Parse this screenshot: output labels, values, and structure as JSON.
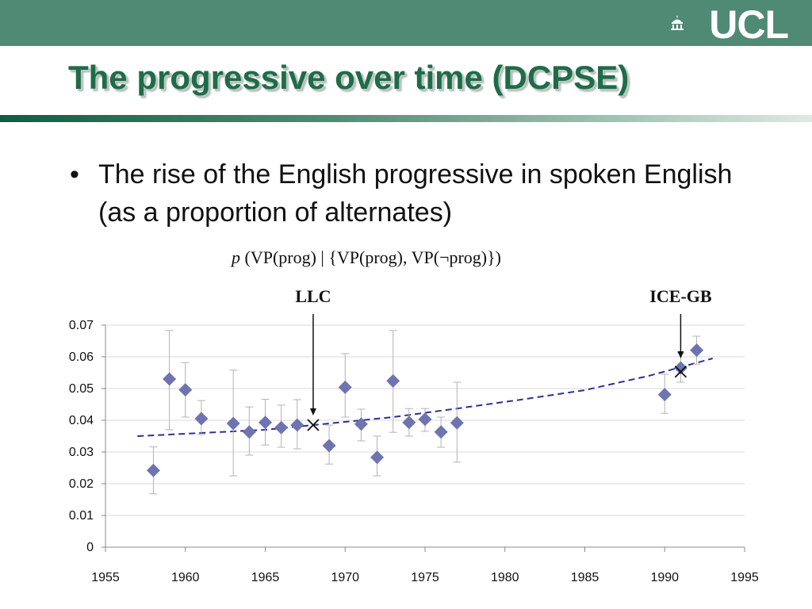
{
  "header": {
    "logo_text": "UCL"
  },
  "slide": {
    "title": "The progressive over time (DCPSE)",
    "bullet": "The rise of the English progressive in spoken English (as a proportion of alternates)",
    "formula_p": "p",
    "formula_rest": "(VP(prog) | {VP(prog), VP(¬prog)})"
  },
  "colors": {
    "header_bar": "#4f8a74",
    "title": "#1f6b4a",
    "marker": "#6f74b0",
    "trend": "#2e3192"
  },
  "chart_data": {
    "type": "scatter",
    "title": "",
    "xlabel": "",
    "ylabel": "",
    "xlim": [
      1955,
      1995
    ],
    "ylim": [
      0,
      0.07
    ],
    "x_ticks": [
      1955,
      1960,
      1965,
      1970,
      1975,
      1980,
      1985,
      1990,
      1995
    ],
    "y_ticks": [
      0,
      0.01,
      0.02,
      0.03,
      0.04,
      0.05,
      0.06,
      0.07
    ],
    "y_tick_labels": [
      "0",
      "0.01",
      "0.02",
      "0.03",
      "0.04",
      "0.05",
      "0.06",
      "0.07"
    ],
    "grid": "horizontal",
    "points": [
      {
        "x": 1958,
        "y": 0.0242,
        "lo": 0.0168,
        "hi": 0.0316
      },
      {
        "x": 1959,
        "y": 0.053,
        "lo": 0.037,
        "hi": 0.0683
      },
      {
        "x": 1960,
        "y": 0.0496,
        "lo": 0.041,
        "hi": 0.0582
      },
      {
        "x": 1961,
        "y": 0.0405,
        "lo": 0.0355,
        "hi": 0.0462
      },
      {
        "x": 1963,
        "y": 0.039,
        "lo": 0.0225,
        "hi": 0.0558
      },
      {
        "x": 1964,
        "y": 0.0363,
        "lo": 0.029,
        "hi": 0.0442
      },
      {
        "x": 1965,
        "y": 0.0393,
        "lo": 0.0322,
        "hi": 0.0466
      },
      {
        "x": 1966,
        "y": 0.0377,
        "lo": 0.0315,
        "hi": 0.0448
      },
      {
        "x": 1967,
        "y": 0.0385,
        "lo": 0.031,
        "hi": 0.0465
      },
      {
        "x": 1969,
        "y": 0.032,
        "lo": 0.0262,
        "hi": 0.0385
      },
      {
        "x": 1970,
        "y": 0.0504,
        "lo": 0.041,
        "hi": 0.061
      },
      {
        "x": 1971,
        "y": 0.0388,
        "lo": 0.0335,
        "hi": 0.0435
      },
      {
        "x": 1972,
        "y": 0.0283,
        "lo": 0.0225,
        "hi": 0.035
      },
      {
        "x": 1973,
        "y": 0.0524,
        "lo": 0.0362,
        "hi": 0.0683
      },
      {
        "x": 1974,
        "y": 0.0393,
        "lo": 0.035,
        "hi": 0.0437
      },
      {
        "x": 1975,
        "y": 0.0403,
        "lo": 0.0365,
        "hi": 0.0437
      },
      {
        "x": 1976,
        "y": 0.0363,
        "lo": 0.0315,
        "hi": 0.041
      },
      {
        "x": 1977,
        "y": 0.0392,
        "lo": 0.0268,
        "hi": 0.052
      },
      {
        "x": 1990,
        "y": 0.0481,
        "lo": 0.0422,
        "hi": 0.0545
      },
      {
        "x": 1991,
        "y": 0.0565,
        "lo": 0.052,
        "hi": 0.0612
      },
      {
        "x": 1992,
        "y": 0.0621,
        "lo": 0.0577,
        "hi": 0.0665
      }
    ],
    "trend": [
      {
        "x": 1957,
        "y": 0.035
      },
      {
        "x": 1961,
        "y": 0.036
      },
      {
        "x": 1965,
        "y": 0.037
      },
      {
        "x": 1969,
        "y": 0.039
      },
      {
        "x": 1973,
        "y": 0.041
      },
      {
        "x": 1977,
        "y": 0.0437
      },
      {
        "x": 1981,
        "y": 0.0465
      },
      {
        "x": 1985,
        "y": 0.0495
      },
      {
        "x": 1989,
        "y": 0.054
      },
      {
        "x": 1993,
        "y": 0.0595
      }
    ],
    "crosses": [
      {
        "x": 1968,
        "y": 0.0385
      },
      {
        "x": 1991,
        "y": 0.0553
      }
    ],
    "annotations": [
      {
        "label": "LLC",
        "x": 1968,
        "target_y": 0.0385
      },
      {
        "label": "ICE-GB",
        "x": 1991,
        "target_y": 0.0565
      }
    ]
  }
}
